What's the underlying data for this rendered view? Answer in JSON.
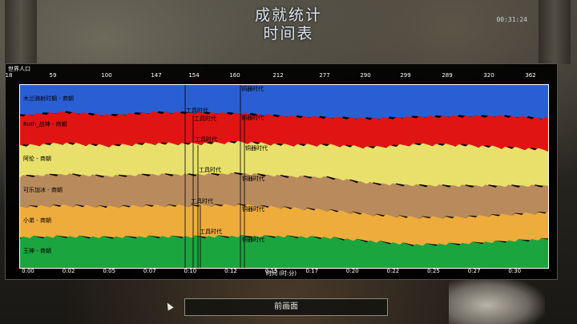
{
  "screen": {
    "title_line1": "成就统计",
    "title_line2": "时间表",
    "clock": "00:31:24",
    "panel_label": "世界人口",
    "back_button": "前画面",
    "x_axis_label": "时间 (时:分)"
  },
  "colors": {
    "blue": "#2a5fd3",
    "red": "#e11414",
    "yellow": "#e8e06a",
    "brown": "#b98a5c",
    "orange": "#eeac3a",
    "green": "#1aa53e"
  },
  "chart_data": {
    "type": "area",
    "title": "世界人口",
    "xlabel": "时间 (时:分)",
    "top_tick_labels": [
      "18",
      "59",
      "100",
      "147",
      "154",
      "160",
      "212",
      "277",
      "290",
      "299",
      "289",
      "320",
      "362"
    ],
    "x": [
      "0:00",
      "0:02",
      "0:05",
      "0:07",
      "0:10",
      "0:12",
      "0:15",
      "0:17",
      "0:20",
      "0:22",
      "0:25",
      "0:27",
      "0:30"
    ],
    "series": [
      {
        "name": "木兰骑射时期 - 商朝",
        "color": "#2a5fd3",
        "values": [
          7,
          7,
          8,
          8,
          9,
          10,
          12,
          13,
          14,
          14,
          13,
          13,
          14
        ]
      },
      {
        "name": "Ruth_战神 - 商朝",
        "color": "#e11414",
        "values": [
          7,
          8,
          8,
          9,
          10,
          10,
          11,
          11,
          12,
          12,
          12,
          13,
          13
        ]
      },
      {
        "name": "阿伦 - 商朝",
        "color": "#e8e06a",
        "values": [
          7,
          8,
          8,
          9,
          10,
          11,
          12,
          13,
          15,
          18,
          17,
          16,
          15
        ]
      },
      {
        "name": "可乐加冰 - 商朝",
        "color": "#b98a5c",
        "values": [
          7,
          8,
          8,
          9,
          10,
          11,
          12,
          13,
          13,
          14,
          13,
          12,
          11
        ]
      },
      {
        "name": "小弟 - 商朝",
        "color": "#eeac3a",
        "values": [
          7,
          8,
          8,
          9,
          10,
          11,
          11,
          11,
          11,
          12,
          11,
          11,
          11
        ]
      },
      {
        "name": "王神 - 商朝",
        "color": "#1aa53e",
        "values": [
          7,
          8,
          8,
          9,
          10,
          11,
          12,
          12,
          11,
          10,
          10,
          11,
          12
        ]
      }
    ],
    "age_labels": [
      {
        "text": "工具时代"
      },
      {
        "text": "铜器时代"
      },
      {
        "text": "工具时代"
      },
      {
        "text": "铜器时代"
      },
      {
        "text": "工具时代"
      },
      {
        "text": "铜器时代"
      },
      {
        "text": "工具时代"
      },
      {
        "text": "铜器时代"
      },
      {
        "text": "工具时代"
      },
      {
        "text": "铜器时代"
      },
      {
        "text": "工具时代"
      },
      {
        "text": "铜器时代"
      }
    ]
  }
}
